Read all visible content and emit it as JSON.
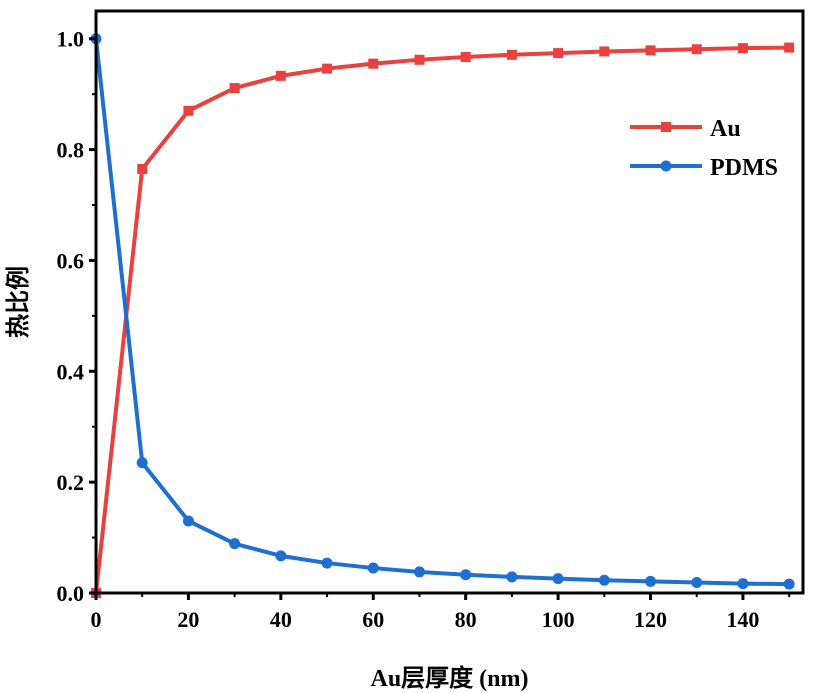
{
  "chart_data": {
    "type": "line",
    "title": "",
    "xlabel": "Au层厚度 (nm)",
    "ylabel": "热比例",
    "xlim": [
      0,
      153
    ],
    "ylim": [
      0,
      1.05
    ],
    "xticks": [
      0,
      20,
      40,
      60,
      80,
      100,
      120,
      140
    ],
    "xtick_labels": [
      "0",
      "20",
      "40",
      "60",
      "80",
      "100",
      "120",
      "140"
    ],
    "yticks": [
      0.0,
      0.2,
      0.4,
      0.6,
      0.8,
      1.0
    ],
    "ytick_labels": [
      "0.0",
      "0.2",
      "0.4",
      "0.6",
      "0.8",
      "1.0"
    ],
    "grid": false,
    "legend_position": "top-right",
    "x": [
      0,
      10,
      20,
      30,
      40,
      50,
      60,
      70,
      80,
      90,
      100,
      110,
      120,
      130,
      140,
      150
    ],
    "series": [
      {
        "name": "Au",
        "color": "#e8413f",
        "marker": "square",
        "values": [
          0.0,
          0.765,
          0.87,
          0.911,
          0.933,
          0.946,
          0.955,
          0.962,
          0.967,
          0.971,
          0.974,
          0.977,
          0.979,
          0.981,
          0.983,
          0.984
        ]
      },
      {
        "name": "PDMS",
        "color": "#1f6fd1",
        "marker": "circle",
        "values": [
          1.0,
          0.235,
          0.13,
          0.089,
          0.067,
          0.054,
          0.045,
          0.038,
          0.033,
          0.029,
          0.026,
          0.023,
          0.021,
          0.019,
          0.017,
          0.016
        ]
      }
    ]
  }
}
